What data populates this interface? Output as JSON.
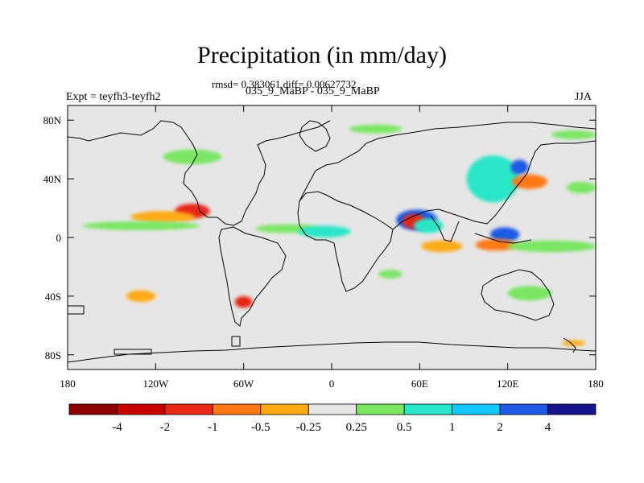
{
  "header": {
    "title": "Precipitation (in mm/day)",
    "stats": "rmsd= 0.383061 diff= 0.00627732",
    "subtitle": "035_9_MaBP - 035_9_MaBP",
    "left_label": "Expt = teyfh3-teyfh2",
    "right_label": "JJA"
  },
  "map": {
    "projection": "cylindrical-equidistant",
    "lon_range": [
      -180,
      180
    ],
    "lat_range": [
      -90,
      90
    ],
    "x_ticks": [
      {
        "lon": -180,
        "label": "180"
      },
      {
        "lon": -120,
        "label": "120W"
      },
      {
        "lon": -60,
        "label": "60W"
      },
      {
        "lon": 0,
        "label": "0"
      },
      {
        "lon": 60,
        "label": "60E"
      },
      {
        "lon": 120,
        "label": "120E"
      },
      {
        "lon": 180,
        "label": "180"
      }
    ],
    "y_ticks": [
      {
        "lat": 80,
        "label": "80N"
      },
      {
        "lat": 40,
        "label": "40N"
      },
      {
        "lat": 0,
        "label": "0"
      },
      {
        "lat": -40,
        "label": "40S"
      },
      {
        "lat": -80,
        "label": "80S"
      }
    ],
    "background_color": "#e6e6e6",
    "coastline_color": "#000000",
    "anomaly_regions": [
      {
        "name": "south-asia-wet",
        "lon": 58,
        "lat": 12,
        "dlon": 14,
        "dlat": 7,
        "color": "#1e5ae6"
      },
      {
        "name": "arabian-sea-dry",
        "lon": 56,
        "lat": 11,
        "dlon": 8,
        "dlat": 5,
        "color": "#e62814"
      },
      {
        "name": "bay-of-bengal-wet",
        "lon": 66,
        "lat": 8,
        "dlon": 10,
        "dlat": 5,
        "color": "#2ae6c8"
      },
      {
        "name": "east-asia-wet",
        "lon": 110,
        "lat": 40,
        "dlon": 18,
        "dlat": 16,
        "color": "#2ae6c8"
      },
      {
        "name": "east-asia-core",
        "lon": 128,
        "lat": 48,
        "dlon": 6,
        "dlat": 5,
        "color": "#1e5ae6"
      },
      {
        "name": "japan-dry",
        "lon": 135,
        "lat": 38,
        "dlon": 12,
        "dlat": 5,
        "color": "#ff7814"
      },
      {
        "name": "maritime-wet",
        "lon": 118,
        "lat": 2,
        "dlon": 10,
        "dlat": 5,
        "color": "#1e5ae6"
      },
      {
        "name": "maritime-dry",
        "lon": 112,
        "lat": -5,
        "dlon": 14,
        "dlat": 4,
        "color": "#ff7814"
      },
      {
        "name": "central-america-dry",
        "lon": -95,
        "lat": 18,
        "dlon": 12,
        "dlat": 5,
        "color": "#e62814"
      },
      {
        "name": "east-pacific-dry",
        "lon": -115,
        "lat": 14,
        "dlon": 22,
        "dlat": 4,
        "color": "#ffaa14"
      },
      {
        "name": "east-pacific-wet",
        "lon": -130,
        "lat": 8,
        "dlon": 40,
        "dlat": 3,
        "color": "#7ae664"
      },
      {
        "name": "atlantic-itcz-wet",
        "lon": -30,
        "lat": 6,
        "dlon": 22,
        "dlat": 3,
        "color": "#7ae664"
      },
      {
        "name": "west-africa-wet",
        "lon": -5,
        "lat": 4,
        "dlon": 18,
        "dlat": 4,
        "color": "#2ae6c8"
      },
      {
        "name": "indian-ocean-dry",
        "lon": 75,
        "lat": -6,
        "dlon": 14,
        "dlat": 4,
        "color": "#ffaa14"
      },
      {
        "name": "south-pacific-wet",
        "lon": 150,
        "lat": -6,
        "dlon": 30,
        "dlat": 4,
        "color": "#7ae664"
      },
      {
        "name": "south-atlantic-dry",
        "lon": -60,
        "lat": -44,
        "dlon": 6,
        "dlat": 4,
        "color": "#e62814"
      },
      {
        "name": "southern-ocean-dry",
        "lon": -130,
        "lat": -40,
        "dlon": 10,
        "dlat": 4,
        "color": "#ffaa14"
      },
      {
        "name": "southern-africa-wet",
        "lon": 40,
        "lat": -25,
        "dlon": 8,
        "dlat": 3,
        "color": "#7ae664"
      },
      {
        "name": "north-atlantic-wet",
        "lon": 30,
        "lat": 74,
        "dlon": 18,
        "dlat": 3,
        "color": "#7ae664"
      },
      {
        "name": "north-pacific-wet",
        "lon": 165,
        "lat": 70,
        "dlon": 15,
        "dlat": 3,
        "color": "#7ae664"
      },
      {
        "name": "australia-wet",
        "lon": 135,
        "lat": -38,
        "dlon": 15,
        "dlat": 5,
        "color": "#7ae664"
      },
      {
        "name": "tasman-dry",
        "lon": 165,
        "lat": -72,
        "dlon": 8,
        "dlat": 2,
        "color": "#ffaa14"
      },
      {
        "name": "north-america-wet",
        "lon": -95,
        "lat": 55,
        "dlon": 20,
        "dlat": 5,
        "color": "#7ae664"
      },
      {
        "name": "western-pacific-wet",
        "lon": 170,
        "lat": 34,
        "dlon": 10,
        "dlat": 4,
        "color": "#7ae664"
      }
    ]
  },
  "colorbar": {
    "colors": [
      "#8b0000",
      "#c80000",
      "#e62814",
      "#ff7814",
      "#ffaa14",
      "#e6e6e6",
      "#7ae664",
      "#2ae6c8",
      "#14c8ff",
      "#1e5ae6",
      "#14148c"
    ],
    "labels": [
      "-4",
      "-2",
      "-1",
      "-0.5",
      "-0.25",
      "0.25",
      "0.5",
      "1",
      "2",
      "4"
    ]
  }
}
